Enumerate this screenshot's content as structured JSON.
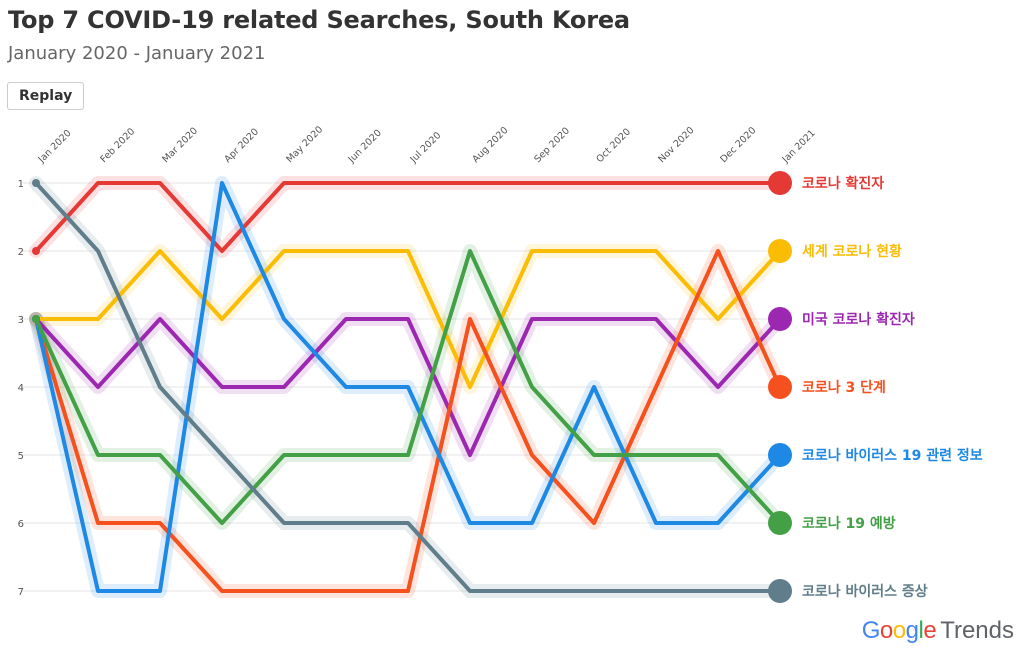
{
  "title": "Top 7 COVID-19 related Searches, South Korea",
  "subtitle": "January 2020 - January 2021",
  "replay_label": "Replay",
  "brand": {
    "letters": [
      {
        "ch": "G",
        "color": "#4285F4"
      },
      {
        "ch": "o",
        "color": "#EA4335"
      },
      {
        "ch": "o",
        "color": "#FBBC05"
      },
      {
        "ch": "g",
        "color": "#4285F4"
      },
      {
        "ch": "l",
        "color": "#34A853"
      },
      {
        "ch": "e",
        "color": "#EA4335"
      }
    ],
    "trends": "Trends"
  },
  "chart_data": {
    "type": "line",
    "categories": [
      "Jan 2020",
      "Feb 2020",
      "Mar 2020",
      "Apr 2020",
      "May 2020",
      "Jun 2020",
      "Jul 2020",
      "Aug 2020",
      "Sep 2020",
      "Oct 2020",
      "Nov 2020",
      "Dec 2020",
      "Jan 2021"
    ],
    "y_ticks": [
      "1",
      "2",
      "3",
      "4",
      "5",
      "6",
      "7"
    ],
    "ylim": [
      1,
      7
    ],
    "y_inverted": true,
    "grid": true,
    "legend_placement": "right, end of lines",
    "series": [
      {
        "name": "코로나 확진자",
        "color": "#E53935",
        "values": [
          2,
          1,
          1,
          2,
          1,
          1,
          1,
          1,
          1,
          1,
          1,
          1,
          1
        ]
      },
      {
        "name": "세계 코로나 현황",
        "color": "#FBBC05",
        "values": [
          3,
          3,
          2,
          3,
          2,
          2,
          2,
          4,
          2,
          2,
          2,
          3,
          2
        ]
      },
      {
        "name": "미국 코로나 확진자",
        "color": "#9C27B0",
        "values": [
          3,
          4,
          3,
          4,
          4,
          3,
          3,
          5,
          3,
          3,
          3,
          4,
          3
        ]
      },
      {
        "name": "코로나 3 단계",
        "color": "#F4511E",
        "values": [
          3,
          6,
          6,
          7,
          7,
          7,
          7,
          3,
          5,
          6,
          4,
          2,
          4
        ]
      },
      {
        "name": "코로나 바이러스 19 관련 정보",
        "color": "#1E88E5",
        "values": [
          3,
          7,
          7,
          1,
          3,
          4,
          4,
          6,
          6,
          4,
          6,
          6,
          5
        ]
      },
      {
        "name": "코로나 19 예방",
        "color": "#43A047",
        "values": [
          3,
          5,
          5,
          6,
          5,
          5,
          5,
          2,
          4,
          5,
          5,
          5,
          6
        ]
      },
      {
        "name": "코로나 바이러스 증상",
        "color": "#607D8B",
        "values": [
          1,
          2,
          4,
          5,
          6,
          6,
          6,
          7,
          7,
          7,
          7,
          7,
          7
        ]
      }
    ]
  }
}
